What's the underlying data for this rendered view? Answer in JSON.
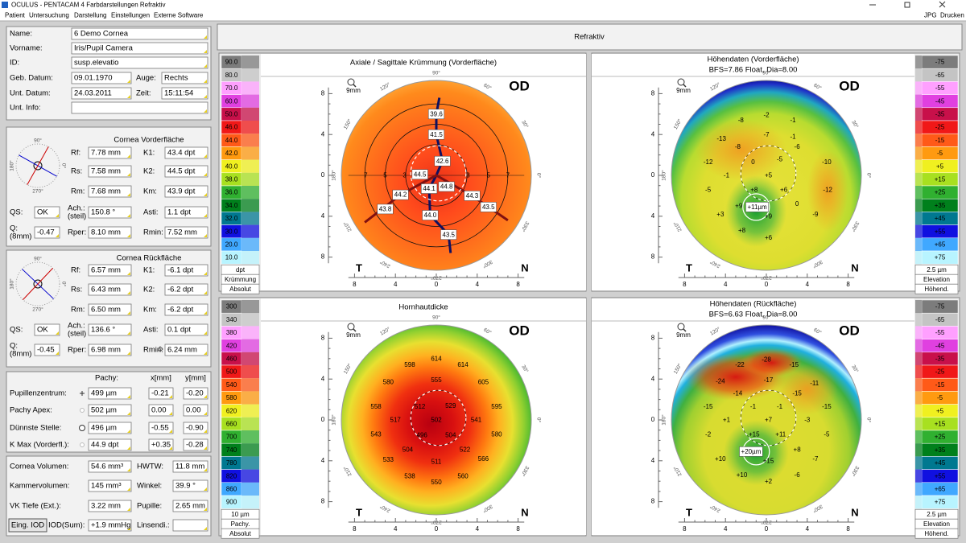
{
  "window": {
    "title": "OCULUS - PENTACAM  4 Farbdarstellungen Refraktiv",
    "menu": [
      "Patient",
      "Untersuchung",
      "Darstellung",
      "Einstellungen",
      "Externe Software"
    ],
    "menu_right": [
      "JPG",
      "Drucken"
    ]
  },
  "patient": [
    {
      "label": "Name:",
      "value": "6 Demo Cornea"
    },
    {
      "label": "Vorname:",
      "value": "Iris/Pupil Camera"
    },
    {
      "label": "ID:",
      "value": "susp.elevatio"
    },
    {
      "label": "Geb. Datum:",
      "value": "09.01.1970"
    },
    {
      "label": "Auge:",
      "value": "Rechts"
    },
    {
      "label": "Unt. Datum:",
      "value": "24.03.2011"
    },
    {
      "label": "Zeit:",
      "value": "15:11:54"
    },
    {
      "label": "Unt. Info:"
    }
  ],
  "mini_axis_labels": [
    "90°",
    "180°",
    "270°",
    "0°"
  ],
  "front": {
    "title": "Cornea Vorderfläche",
    "cells": [
      {
        "label": "Rf:",
        "value": "7.78 mm",
        "color": "#0000cc"
      },
      {
        "label": "K1:",
        "value": "43.4 dpt",
        "color": "#0000cc"
      },
      {
        "label": "Rs:",
        "value": "7.58 mm",
        "color": "#cc0000"
      },
      {
        "label": "K2:",
        "value": "44.5 dpt",
        "color": "#cc0000"
      },
      {
        "label": "Rm:",
        "value": "7.68 mm"
      },
      {
        "label": "Km:",
        "value": "43.9 dpt"
      },
      {
        "label": "QS:",
        "value": "OK"
      },
      {
        "label": [
          "Ach.:",
          "(steil)"
        ],
        "value": "150.8 °",
        "color": "#cc0000"
      },
      {
        "label": "Asti:",
        "value": "1.1 dpt"
      },
      {
        "label": [
          "Q:",
          "(8mm)"
        ],
        "value": "-0.47"
      },
      {
        "label": "Rper:",
        "value": "8.10 mm"
      },
      {
        "label": "Rmin:",
        "value": "7.52 mm"
      }
    ]
  },
  "back": {
    "title": "Cornea Rückfläche",
    "cells": [
      {
        "label": "Rf:",
        "value": "6.57 mm",
        "color": "#0000cc"
      },
      {
        "label": "K1:",
        "value": "-6.1 dpt",
        "color": "#0000cc"
      },
      {
        "label": "Rs:",
        "value": "6.43 mm",
        "color": "#cc0000"
      },
      {
        "label": "K2:",
        "value": "-6.2 dpt",
        "color": "#cc0000"
      },
      {
        "label": "Rm:",
        "value": "6.50 mm"
      },
      {
        "label": "Km:",
        "value": "-6.2 dpt"
      },
      {
        "label": "QS:",
        "value": "OK"
      },
      {
        "label": [
          "Ach.:",
          "(steil)"
        ],
        "value": "136.6 °",
        "color": "#cc0000"
      },
      {
        "label": "Asti:",
        "value": "0.1 dpt"
      },
      {
        "label": [
          "Q:",
          "(8mm)"
        ],
        "value": "-0.45"
      },
      {
        "label": "Rper:",
        "value": "6.98 mm"
      },
      {
        "label": "Rmin:",
        "value": "6.24 mm"
      }
    ]
  },
  "pachy": {
    "headers": [
      "Pachy:",
      "x[mm]",
      "y[mm]"
    ],
    "rows": [
      {
        "label": "Pupillenzentrum:",
        "pachy": "499 µm",
        "x": "-0.21",
        "y": "-0.20"
      },
      {
        "label": "Pachy Apex:",
        "pachy": "502 µm",
        "x": "0.00",
        "y": "0.00"
      },
      {
        "label": "Dünnste Stelle:",
        "pachy": "496 µm",
        "x": "-0.55",
        "y": "-0.90"
      },
      {
        "label": "K Max (Vorderfl.):",
        "pachy": "44.9 dpt",
        "x": "+0.35",
        "y": "-0.28"
      }
    ]
  },
  "volumes": {
    "button": "Eing. IOD",
    "cells": [
      {
        "label": "Cornea Volumen:",
        "value": "54.6 mm³"
      },
      {
        "label": "HWTW:",
        "value": "11.8 mm"
      },
      {
        "label": "Kammervolumen:",
        "value": "145 mm³"
      },
      {
        "label": "Winkel:",
        "value": "39.9 °"
      },
      {
        "label": "VK Tiefe (Ext.):",
        "value": "3.22 mm"
      },
      {
        "label": "Pupille:",
        "value": "2.65 mm"
      },
      {
        "label": "IOD(Sum):",
        "value": "+1.9 mmHg"
      },
      {
        "label": "Linsendi.:"
      }
    ]
  },
  "header": "Refraktiv",
  "maps": {
    "od": "OD",
    "zoom": "9mm",
    "T": "T",
    "N": "N",
    "ticks": [
      8,
      4,
      0,
      4,
      8
    ],
    "degrees": [
      "0°",
      "30°",
      "60°",
      "90°",
      "120°",
      "150°",
      "180°",
      "210°",
      "240°",
      "270°",
      "300°",
      "330°"
    ],
    "palette": [
      "#7c7c7c",
      "#c4c4c4",
      "#ffa0ff",
      "#e040e0",
      "#c8104a",
      "#f01818",
      "#ff5a18",
      "#ff9a10",
      "#f0f020",
      "#a8e020",
      "#30b030",
      "#00801c",
      "#007890",
      "#1010e0",
      "#40a8ff",
      "#b8f4ff"
    ],
    "panels": [
      {
        "title": "Axiale / Sagittale Krümmung (Vorderfläche)",
        "scale": {
          "values": [
            "90.0",
            "80.0",
            "70.0",
            "60.0",
            "50.0",
            "46.0",
            "44.0",
            "42.0",
            "40.0",
            "38.0",
            "36.0",
            "34.0",
            "32.0",
            "30.0",
            "20.0",
            "10.0"
          ],
          "unit": "dpt",
          "name": "Krümmung",
          "mode": "Absolut"
        },
        "labels": [
          "39.6",
          "41.5",
          "42.6",
          "44.5",
          "44.8",
          "44.1",
          "44.2",
          "44.3",
          "43.8",
          "43.5",
          "44.0",
          "43.5",
          "7",
          "5",
          "3",
          "3",
          "5",
          "7"
        ],
        "label_colors": [
          "#0000c0",
          "#0000c0",
          "#0000c0",
          "#c00000",
          "#c00000",
          "#0000c0",
          "#c00000",
          "#c00000",
          "#c00000",
          "#c00000",
          "#0000c0",
          "#0000c0",
          "#000000",
          "#000000",
          "#000000",
          "#000000",
          "#000000",
          "#000000"
        ]
      },
      {
        "title": "Höhendaten (Vorderfläche)",
        "subtitle": "BFS=7.86 Float, Dia=8.00",
        "scale": {
          "values": [
            "-75",
            "-65",
            "-55",
            "-45",
            "-35",
            "-25",
            "-15",
            "-5",
            "+5",
            "+15",
            "+25",
            "+35",
            "+45",
            "+55",
            "+65",
            "+75"
          ],
          "unit": "2.5 µm",
          "name": "Elevation",
          "mode": "Höhend."
        },
        "labels": [
          "-2",
          "-1",
          "-8",
          "-7",
          "-1",
          "-13",
          "-8",
          "-6",
          "-12",
          "0",
          "-5",
          "-10",
          "-1",
          "+5",
          "-5",
          "+8",
          "+6",
          "-12",
          "+9",
          "+11µm",
          "0",
          "+3",
          "+9",
          "-9",
          "+8",
          "+6"
        ]
      },
      {
        "title": "Hornhautdicke",
        "scale": {
          "values": [
            "300",
            "340",
            "380",
            "420",
            "460",
            "500",
            "540",
            "580",
            "620",
            "660",
            "700",
            "740",
            "780",
            "820",
            "860",
            "900"
          ],
          "unit": "10 µm",
          "name": "Pachy.",
          "mode": "Absolut"
        },
        "labels": [
          "614",
          "598",
          "614",
          "580",
          "555",
          "605",
          "558",
          "512",
          "529",
          "595",
          "517",
          "502",
          "541",
          "543",
          "496",
          "504",
          "580",
          "504",
          "522",
          "533",
          "511",
          "566",
          "538",
          "550",
          "560"
        ]
      },
      {
        "title": "Höhendaten (Rückfläche)",
        "subtitle": "BFS=6.63 Float, Dia=8.00",
        "scale": {
          "values": [
            "-75",
            "-65",
            "-55",
            "-45",
            "-35",
            "-25",
            "-15",
            "-5",
            "+5",
            "+15",
            "+25",
            "+35",
            "+45",
            "+55",
            "+65",
            "+75"
          ],
          "unit": "2.5 µm",
          "name": "Elevation",
          "mode": "Höhend."
        },
        "labels": [
          "-28",
          "-22",
          "-15",
          "-24",
          "-17",
          "-11",
          "-14",
          "-15",
          "-15",
          "-1",
          "-1",
          "-15",
          "+1",
          "+7",
          "-3",
          "-2",
          "+15",
          "+11",
          "-5",
          "+20µm",
          "+8",
          "+10",
          "+15",
          "-7",
          "+10",
          "-6",
          "+2"
        ]
      }
    ]
  }
}
